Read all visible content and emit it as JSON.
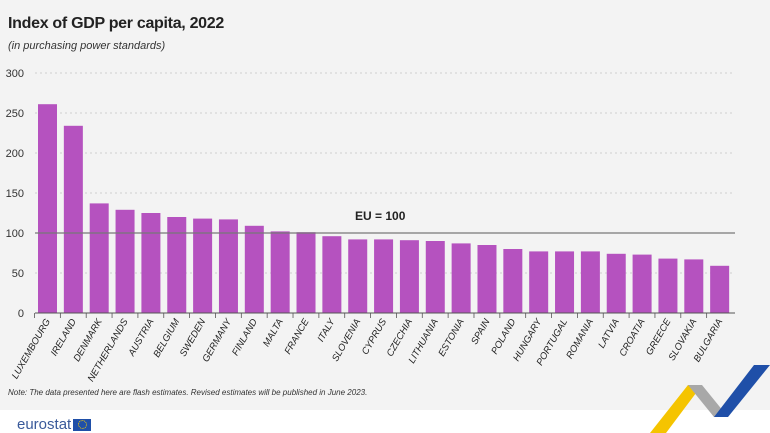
{
  "chart_data": {
    "type": "bar",
    "title": "Index of GDP per capita, 2022",
    "subtitle": "(in purchasing power standards)",
    "categories": [
      "LUXEMBOURG",
      "IRELAND",
      "DENMARK",
      "NETHERLANDS",
      "AUSTRIA",
      "BELGIUM",
      "SWEDEN",
      "GERMANY",
      "FINLAND",
      "MALTA",
      "FRANCE",
      "ITALY",
      "SLOVENIA",
      "CYPRUS",
      "CZECHIA",
      "LITHUANIA",
      "ESTONIA",
      "SPAIN",
      "POLAND",
      "HUNGARY",
      "PORTUGAL",
      "ROMANIA",
      "LATVIA",
      "CROATIA",
      "GREECE",
      "SLOVAKIA",
      "BULGARIA"
    ],
    "values": [
      261,
      234,
      137,
      129,
      125,
      120,
      118,
      117,
      109,
      102,
      101,
      96,
      92,
      92,
      91,
      90,
      87,
      85,
      80,
      77,
      77,
      77,
      74,
      73,
      68,
      67,
      59
    ],
    "ylim": [
      0,
      300
    ],
    "yticks": [
      0,
      50,
      100,
      150,
      200,
      250,
      300
    ],
    "grid": true,
    "reference_line": {
      "value": 100,
      "label": "EU = 100"
    },
    "bar_color": "#b552bf"
  },
  "note": "Note: The data presented here are flash estimates. Revised estimates will be published in June 2023.",
  "brand": {
    "name": "eurostat"
  }
}
